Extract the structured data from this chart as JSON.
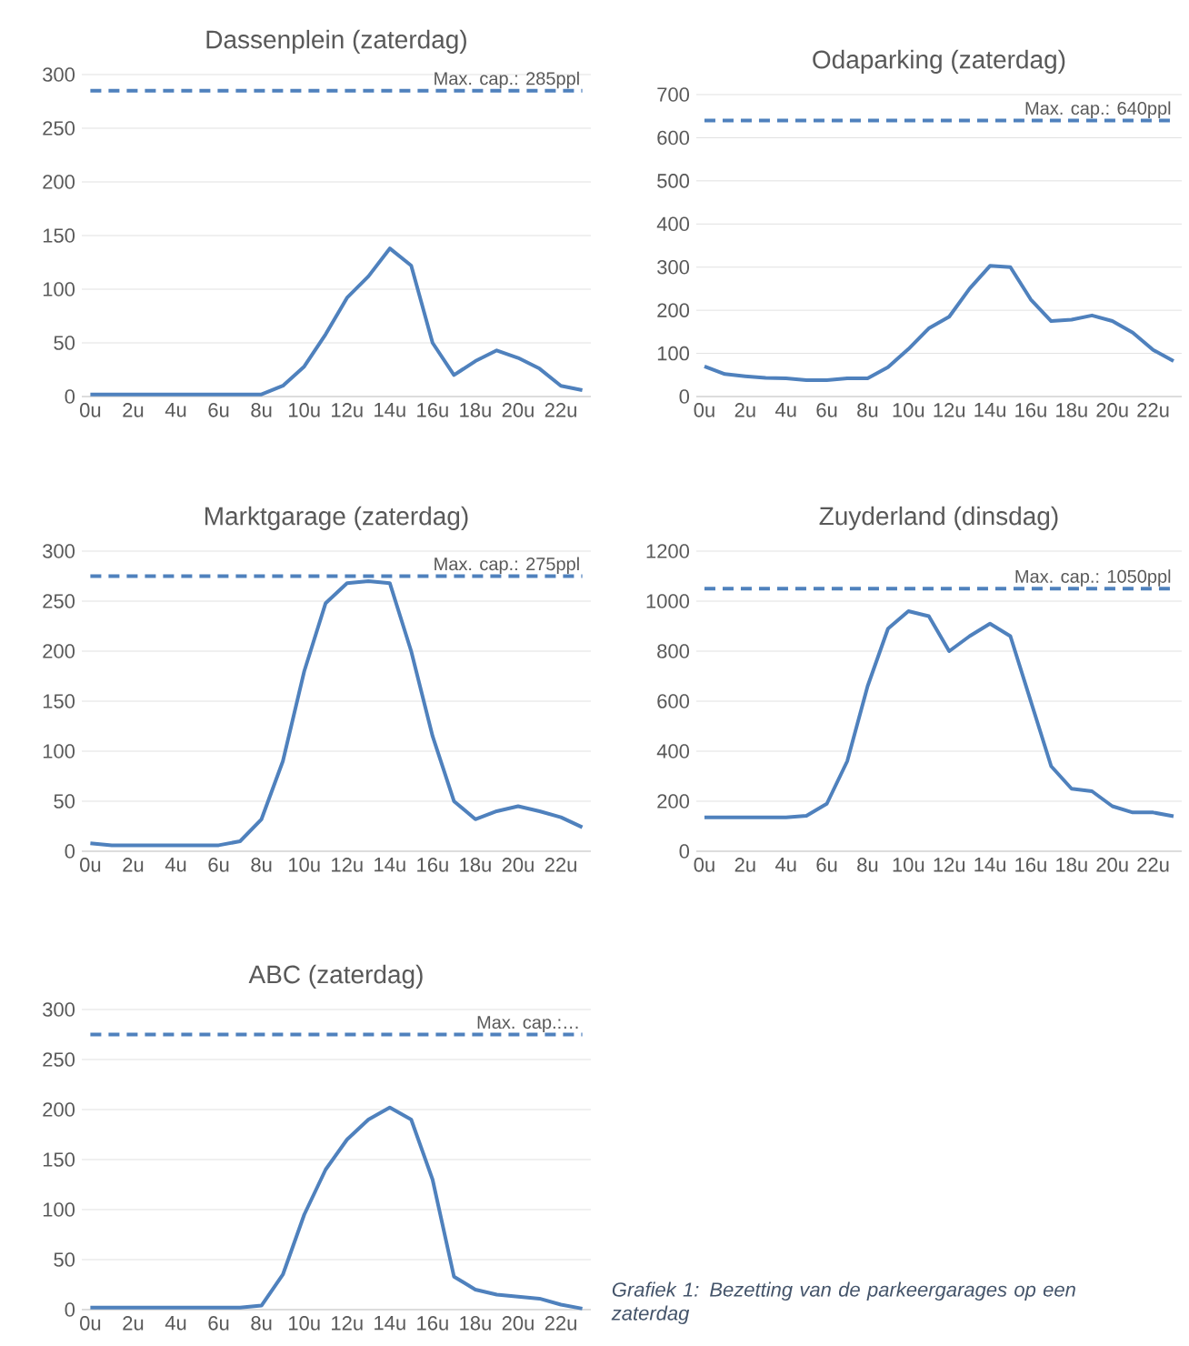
{
  "chart_data": [
    {
      "type": "line",
      "title": "Dassenplein (zaterdag)",
      "categories": [
        "0u",
        null,
        "2u",
        null,
        "4u",
        null,
        "6u",
        null,
        "8u",
        null,
        "10u",
        null,
        "12u",
        null,
        "14u",
        null,
        "16u",
        null,
        "18u",
        null,
        "20u",
        null,
        "22u",
        null
      ],
      "series": [
        {
          "color": "#4f81bd",
          "values": [
            2,
            2,
            2,
            2,
            2,
            2,
            2,
            2,
            2,
            10,
            28,
            58,
            92,
            112,
            138,
            122,
            50,
            20,
            33,
            43,
            36,
            26,
            10,
            6
          ]
        }
      ],
      "ylim": [
        0,
        300
      ],
      "yticks": [
        0,
        50,
        100,
        150,
        200,
        250,
        300
      ],
      "grid": "y",
      "marker": "none",
      "line_style": "solid",
      "ref_lines": [
        {
          "axis": "y",
          "value": 285,
          "label": "Max. cap.: 285ppl",
          "color": "#4f81bd",
          "line_style": "dashed"
        }
      ]
    },
    {
      "type": "line",
      "title": "Odaparking (zaterdag)",
      "categories": [
        "0u",
        null,
        "2u",
        null,
        "4u",
        null,
        "6u",
        null,
        "8u",
        null,
        "10u",
        null,
        "12u",
        null,
        "14u",
        null,
        "16u",
        null,
        "18u",
        null,
        "20u",
        null,
        "22u",
        null
      ],
      "series": [
        {
          "color": "#4f81bd",
          "values": [
            70,
            52,
            47,
            43,
            42,
            38,
            38,
            42,
            42,
            68,
            110,
            158,
            185,
            250,
            303,
            300,
            225,
            175,
            178,
            188,
            175,
            148,
            108,
            82
          ]
        }
      ],
      "ylim": [
        0,
        700
      ],
      "yticks": [
        0,
        100,
        200,
        300,
        400,
        500,
        600,
        700
      ],
      "grid": "y",
      "marker": "none",
      "line_style": "solid",
      "ref_lines": [
        {
          "axis": "y",
          "value": 640,
          "label": "Max. cap.: 640ppl",
          "color": "#4f81bd",
          "line_style": "dashed"
        }
      ]
    },
    {
      "type": "line",
      "title": "Marktgarage (zaterdag)",
      "categories": [
        "0u",
        null,
        "2u",
        null,
        "4u",
        null,
        "6u",
        null,
        "8u",
        null,
        "10u",
        null,
        "12u",
        null,
        "14u",
        null,
        "16u",
        null,
        "18u",
        null,
        "20u",
        null,
        "22u",
        null
      ],
      "series": [
        {
          "color": "#4f81bd",
          "values": [
            8,
            6,
            6,
            6,
            6,
            6,
            6,
            10,
            32,
            90,
            180,
            248,
            268,
            270,
            268,
            200,
            115,
            50,
            32,
            40,
            45,
            40,
            34,
            24
          ]
        }
      ],
      "ylim": [
        0,
        300
      ],
      "yticks": [
        0,
        50,
        100,
        150,
        200,
        250,
        300
      ],
      "grid": "y",
      "marker": "none",
      "line_style": "solid",
      "ref_lines": [
        {
          "axis": "y",
          "value": 275,
          "label": "Max. cap.: 275ppl",
          "color": "#4f81bd",
          "line_style": "dashed"
        }
      ]
    },
    {
      "type": "line",
      "title": "Zuyderland (dinsdag)",
      "categories": [
        "0u",
        null,
        "2u",
        null,
        "4u",
        null,
        "6u",
        null,
        "8u",
        null,
        "10u",
        null,
        "12u",
        null,
        "14u",
        null,
        "16u",
        null,
        "18u",
        null,
        "20u",
        null,
        "22u",
        null
      ],
      "series": [
        {
          "color": "#4f81bd",
          "values": [
            135,
            135,
            135,
            135,
            135,
            142,
            190,
            360,
            660,
            890,
            960,
            940,
            800,
            860,
            910,
            860,
            600,
            340,
            250,
            240,
            180,
            155,
            155,
            140
          ]
        }
      ],
      "ylim": [
        0,
        1200
      ],
      "yticks": [
        0,
        200,
        400,
        600,
        800,
        1000,
        1200
      ],
      "grid": "y",
      "marker": "none",
      "line_style": "solid",
      "ref_lines": [
        {
          "axis": "y",
          "value": 1050,
          "label": "Max. cap.: 1050ppl",
          "color": "#4f81bd",
          "line_style": "dashed"
        }
      ]
    },
    {
      "type": "line",
      "title": "ABC (zaterdag)",
      "categories": [
        "0u",
        null,
        "2u",
        null,
        "4u",
        null,
        "6u",
        null,
        "8u",
        null,
        "10u",
        null,
        "12u",
        null,
        "14u",
        null,
        "16u",
        null,
        "18u",
        null,
        "20u",
        null,
        "22u",
        null
      ],
      "series": [
        {
          "color": "#4f81bd",
          "values": [
            2,
            2,
            2,
            2,
            2,
            2,
            2,
            2,
            4,
            35,
            95,
            140,
            170,
            190,
            202,
            190,
            130,
            33,
            20,
            15,
            13,
            11,
            5,
            1
          ]
        }
      ],
      "ylim": [
        0,
        300
      ],
      "yticks": [
        0,
        50,
        100,
        150,
        200,
        250,
        300
      ],
      "grid": "y",
      "marker": "none",
      "line_style": "solid",
      "ref_lines": [
        {
          "axis": "y",
          "value": 275,
          "label": "Max. cap.:…",
          "color": "#4f81bd",
          "line_style": "dashed"
        }
      ],
      "annotations": [
        "Grafiek 1: Bezetting van de parkeergarages op een zaterdag"
      ]
    }
  ]
}
